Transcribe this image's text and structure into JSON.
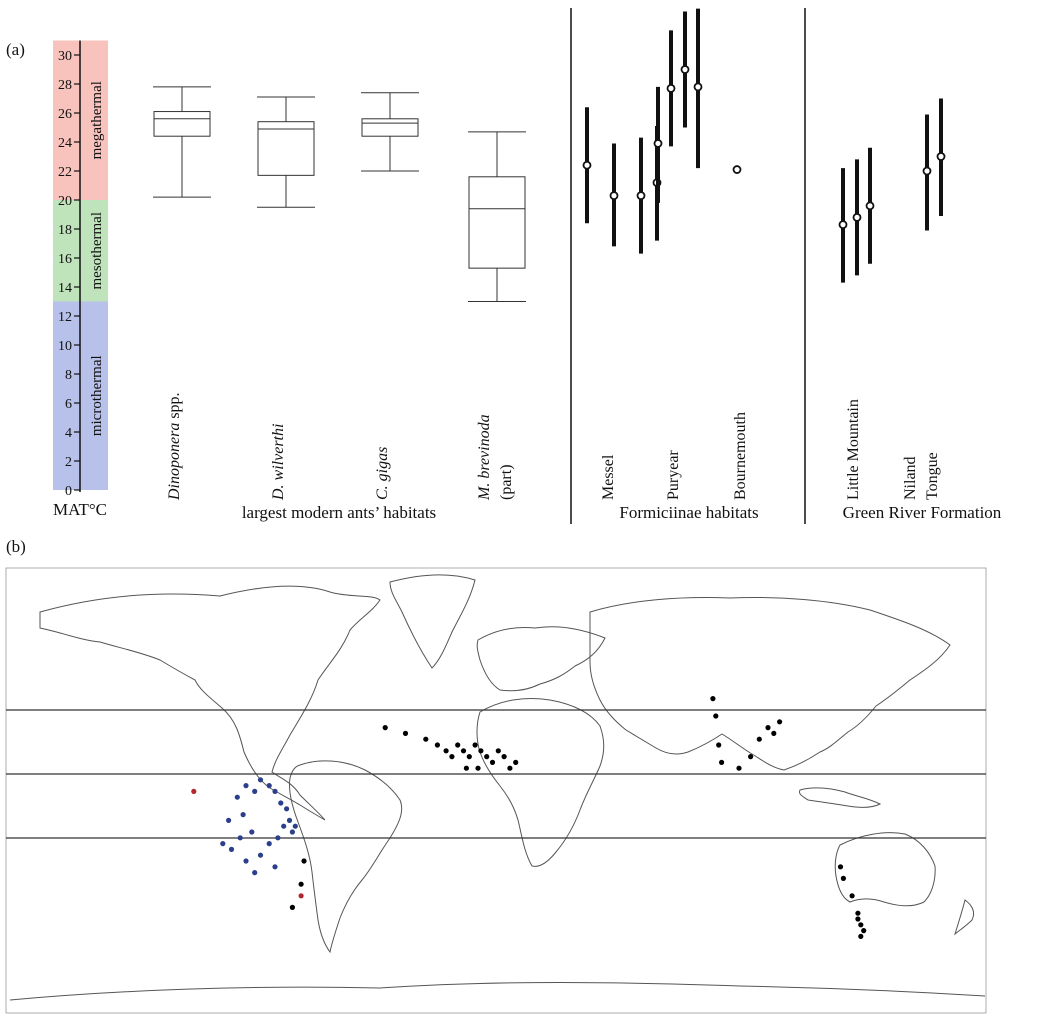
{
  "panel_a_label": "(a)",
  "panel_b_label": "(b)",
  "chart_data": [
    {
      "type": "box",
      "ylabel": "MAT°C",
      "ylim": [
        0,
        31
      ],
      "yticks": [
        0,
        2,
        4,
        6,
        8,
        10,
        12,
        14,
        16,
        18,
        20,
        22,
        24,
        26,
        28,
        30
      ],
      "climate_zones": [
        {
          "name": "microthermal",
          "range": [
            0,
            13
          ],
          "color": "#b8c1ea"
        },
        {
          "name": "mesothermal",
          "range": [
            13,
            20
          ],
          "color": "#bfe3bb"
        },
        {
          "name": "megathermal",
          "range": [
            20,
            31
          ],
          "color": "#f8c2bd"
        }
      ],
      "groups": [
        {
          "label": "largest modern ants’ habitats"
        },
        {
          "label": "Formiciinae habitats"
        },
        {
          "label": "Green River Formation"
        }
      ],
      "boxes": [
        {
          "name_italic": "Dinoponera",
          "name_rest": " spp.",
          "min": 20.2,
          "q1": 24.4,
          "median": 25.6,
          "q3": 26.1,
          "max": 27.8
        },
        {
          "name_italic": "D. wilverthi",
          "name_rest": "",
          "min": 19.5,
          "q1": 21.7,
          "median": 24.9,
          "q3": 25.4,
          "max": 27.1
        },
        {
          "name_italic": "C. gigas",
          "name_rest": "",
          "min": 22.0,
          "q1": 24.4,
          "median": 25.3,
          "q3": 25.6,
          "max": 27.4
        },
        {
          "name_italic": "M. brevinoda",
          "name_rest": "(part)",
          "min": 13.0,
          "q1": 15.3,
          "median": 19.4,
          "q3": 21.6,
          "max": 24.7
        }
      ],
      "sites": [
        {
          "name": "Messel",
          "estimates": [
            {
              "mean": 22.4,
              "low": 18.4,
              "high": 26.4
            },
            {
              "mean": 20.3,
              "low": 16.8,
              "high": 23.9
            },
            {
              "mean": 20.3,
              "low": 16.3,
              "high": 24.3
            },
            {
              "mean": 21.2,
              "low": 17.2,
              "high": 25.1
            }
          ]
        },
        {
          "name": "Puryear",
          "estimates": [
            {
              "mean": 23.9,
              "low": 19.8,
              "high": 27.8
            },
            {
              "mean": 27.7,
              "low": 23.7,
              "high": 31.7
            },
            {
              "mean": 29.0,
              "low": 25.0,
              "high": 33.0
            },
            {
              "mean": 27.8,
              "low": 22.2,
              "high": 33.2
            }
          ]
        },
        {
          "name": "Bournemouth",
          "estimates": [
            {
              "mean": 22.1,
              "low": null,
              "high": null
            }
          ]
        },
        {
          "name": "Little Mountain",
          "estimates": [
            {
              "mean": 18.3,
              "low": 14.3,
              "high": 22.2
            },
            {
              "mean": 18.8,
              "low": 14.8,
              "high": 22.8
            },
            {
              "mean": 19.6,
              "low": 15.6,
              "high": 23.6
            }
          ]
        },
        {
          "name": "Niland Tongue",
          "name_lines": [
            "Niland",
            "Tongue"
          ],
          "estimates": [
            {
              "mean": 22.0,
              "low": 17.9,
              "high": 25.9
            },
            {
              "mean": 23.0,
              "low": 18.9,
              "high": 27.0
            }
          ]
        }
      ]
    },
    {
      "type": "scatter",
      "map": "world outline",
      "parallels": "three horizontal reference lines",
      "series": [
        {
          "color": "#2b3f8c",
          "points": [
            {
              "lon": -66,
              "lat": -8
            },
            {
              "lon": -63,
              "lat": -4
            },
            {
              "lon": -60,
              "lat": -2
            },
            {
              "lon": -57,
              "lat": -3
            },
            {
              "lon": -55,
              "lat": -1
            },
            {
              "lon": -52,
              "lat": -2
            },
            {
              "lon": -50,
              "lat": -3
            },
            {
              "lon": -48,
              "lat": -5
            },
            {
              "lon": -46,
              "lat": -6
            },
            {
              "lon": -45,
              "lat": -8
            },
            {
              "lon": -44,
              "lat": -10
            },
            {
              "lon": -47,
              "lat": -9
            },
            {
              "lon": -49,
              "lat": -11
            },
            {
              "lon": -58,
              "lat": -10
            },
            {
              "lon": -62,
              "lat": -11
            },
            {
              "lon": -65,
              "lat": -13
            },
            {
              "lon": -60,
              "lat": -15
            },
            {
              "lon": -55,
              "lat": -14
            },
            {
              "lon": -52,
              "lat": -12
            },
            {
              "lon": -57,
              "lat": -17
            },
            {
              "lon": -50,
              "lat": -16
            },
            {
              "lon": -43,
              "lat": -9
            },
            {
              "lon": -61,
              "lat": -7
            },
            {
              "lon": -68,
              "lat": -12
            }
          ]
        },
        {
          "color": "#000000",
          "points": [
            {
              "lon": -12,
              "lat": 8
            },
            {
              "lon": -5,
              "lat": 7
            },
            {
              "lon": 2,
              "lat": 6
            },
            {
              "lon": 6,
              "lat": 5
            },
            {
              "lon": 9,
              "lat": 4
            },
            {
              "lon": 11,
              "lat": 3
            },
            {
              "lon": 13,
              "lat": 5
            },
            {
              "lon": 15,
              "lat": 4
            },
            {
              "lon": 17,
              "lat": 3
            },
            {
              "lon": 19,
              "lat": 5
            },
            {
              "lon": 21,
              "lat": 4
            },
            {
              "lon": 23,
              "lat": 3
            },
            {
              "lon": 25,
              "lat": 2
            },
            {
              "lon": 27,
              "lat": 4
            },
            {
              "lon": 29,
              "lat": 3
            },
            {
              "lon": 31,
              "lat": 1
            },
            {
              "lon": 33,
              "lat": 2
            },
            {
              "lon": 20,
              "lat": 1
            },
            {
              "lon": 16,
              "lat": 1
            },
            {
              "lon": 101,
              "lat": 13
            },
            {
              "lon": 102,
              "lat": 10
            },
            {
              "lon": 103,
              "lat": 5
            },
            {
              "lon": 104,
              "lat": 2
            },
            {
              "lon": 110,
              "lat": 1
            },
            {
              "lon": 114,
              "lat": 3
            },
            {
              "lon": 117,
              "lat": 6
            },
            {
              "lon": 120,
              "lat": 8
            },
            {
              "lon": 124,
              "lat": 9
            },
            {
              "lon": 122,
              "lat": 7
            },
            {
              "lon": 145,
              "lat": -16
            },
            {
              "lon": 146,
              "lat": -18
            },
            {
              "lon": 149,
              "lat": -21
            },
            {
              "lon": 151,
              "lat": -24
            },
            {
              "lon": 152,
              "lat": -26
            },
            {
              "lon": 153,
              "lat": -27
            },
            {
              "lon": 152,
              "lat": -28
            },
            {
              "lon": 151,
              "lat": -25
            },
            {
              "lon": -41,
              "lat": -19
            },
            {
              "lon": -40,
              "lat": -15
            },
            {
              "lon": -44,
              "lat": -23
            }
          ]
        },
        {
          "color": "#b3262e",
          "points": [
            {
              "lon": -78,
              "lat": -3
            },
            {
              "lon": -41,
              "lat": -21
            }
          ]
        }
      ]
    }
  ]
}
